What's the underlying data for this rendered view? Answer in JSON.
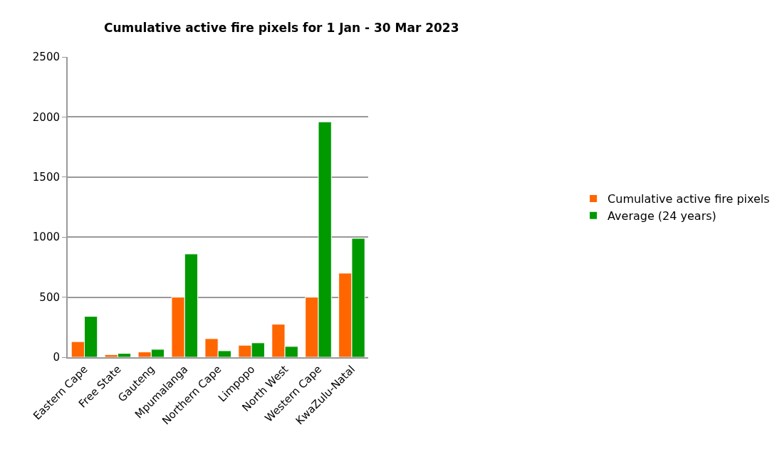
{
  "chart_data": {
    "type": "bar",
    "title": "Cumulative active fire pixels for 1 Jan - 30 Mar 2023",
    "categories": [
      "Eastern Cape",
      "Free State",
      "Gauteng",
      "Mpumalanga",
      "Northern Cape",
      "Limpopo",
      "North West",
      "Western Cape",
      "KwaZulu-Natal"
    ],
    "series": [
      {
        "name": "Cumulative active fire pixels",
        "color": "#ff6600",
        "values": [
          130,
          22,
          44,
          500,
          155,
          100,
          275,
          500,
          700
        ]
      },
      {
        "name": "Average (24 years)",
        "color": "#009900",
        "values": [
          340,
          32,
          66,
          860,
          54,
          120,
          90,
          1960,
          990
        ]
      }
    ],
    "ylim": [
      0,
      2500
    ],
    "yticks": [
      0,
      500,
      1000,
      1500,
      2000,
      2500
    ],
    "grid": "y",
    "legend": "right"
  }
}
